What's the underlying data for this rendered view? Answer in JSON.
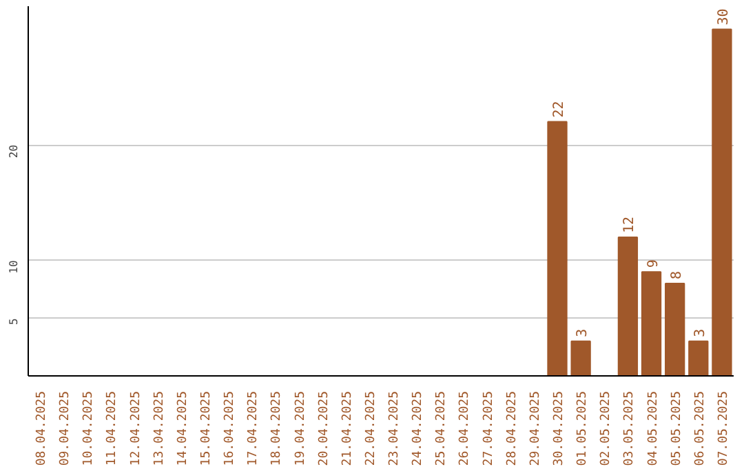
{
  "chart_data": {
    "type": "bar",
    "categories": [
      "08.04.2025",
      "09.04.2025",
      "10.04.2025",
      "11.04.2025",
      "12.04.2025",
      "13.04.2025",
      "14.04.2025",
      "15.04.2025",
      "16.04.2025",
      "17.04.2025",
      "18.04.2025",
      "19.04.2025",
      "20.04.2025",
      "21.04.2025",
      "22.04.2025",
      "23.04.2025",
      "24.04.2025",
      "25.04.2025",
      "26.04.2025",
      "27.04.2025",
      "28.04.2025",
      "29.04.2025",
      "30.04.2025",
      "01.05.2025",
      "02.05.2025",
      "03.05.2025",
      "04.05.2025",
      "05.05.2025",
      "06.05.2025",
      "07.05.2025"
    ],
    "values": [
      0,
      0,
      0,
      0,
      0,
      0,
      0,
      0,
      0,
      0,
      0,
      0,
      0,
      0,
      0,
      0,
      0,
      0,
      0,
      0,
      0,
      0,
      22,
      3,
      0,
      12,
      9,
      8,
      3,
      30
    ],
    "value_labels": [
      null,
      null,
      null,
      null,
      null,
      null,
      null,
      null,
      null,
      null,
      null,
      null,
      null,
      null,
      null,
      null,
      null,
      null,
      null,
      null,
      null,
      null,
      "22",
      "3",
      null,
      "12",
      "9",
      "8",
      "3",
      "30"
    ],
    "color": "#a0582a",
    "ylim": [
      0,
      32
    ],
    "yticks": [
      5,
      10,
      20
    ],
    "grid": "y"
  }
}
